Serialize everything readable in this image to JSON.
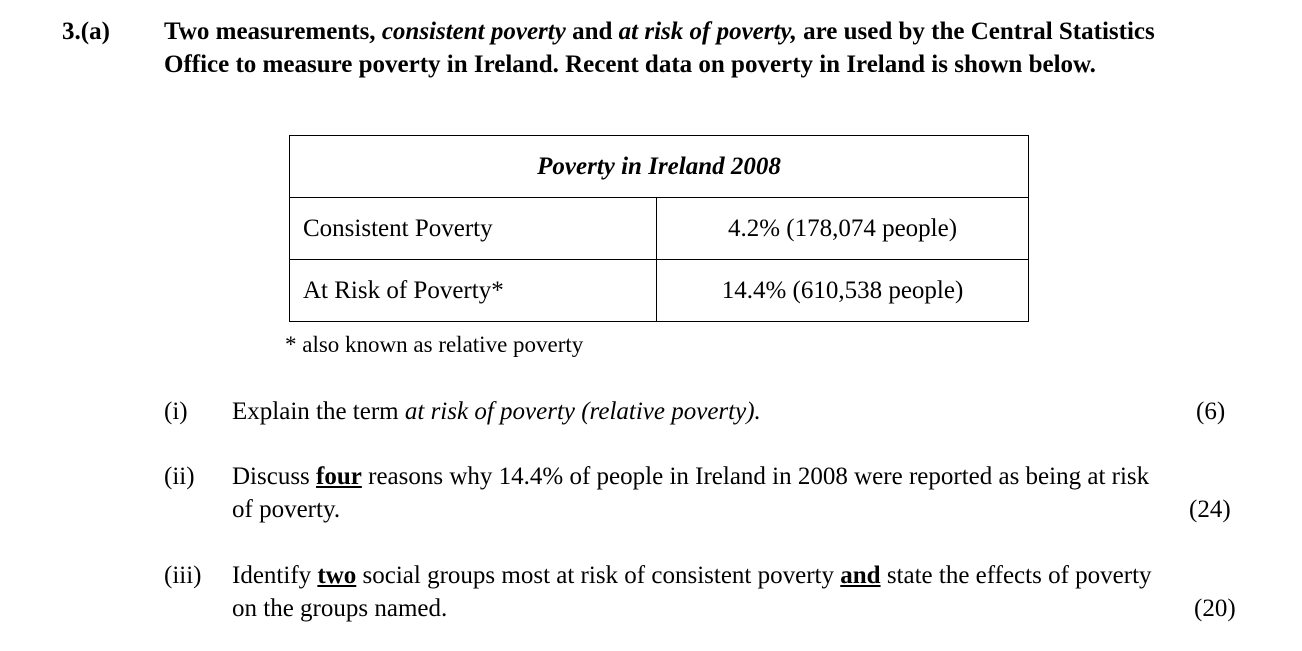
{
  "question": {
    "number": "3.(a)",
    "intro": {
      "part1": "Two measurements, ",
      "italic1": "consistent poverty",
      "part2": " and ",
      "italic2": "at risk of poverty,",
      "part3": " are used by the Central Statistics Office to measure poverty in Ireland.  Recent data on poverty in Ireland is shown below."
    }
  },
  "table": {
    "title": "Poverty in Ireland 2008",
    "rows": [
      {
        "label": "Consistent Poverty",
        "value": "4.2%  (178,074 people)"
      },
      {
        "label": "At Risk of Poverty*",
        "value": "14.4%  (610,538 people)"
      }
    ],
    "footnote": "* also known as relative poverty"
  },
  "parts": [
    {
      "numeral": "(i)",
      "text_before": "Explain the term ",
      "italic": "at risk of poverty (relative poverty).",
      "marks": "(6)"
    },
    {
      "numeral": "(ii)",
      "text_before": "Discuss ",
      "emph": "four",
      "text_after": " reasons why 14.4% of people in Ireland in 2008 were reported as being at risk of poverty.",
      "marks": "(24)"
    },
    {
      "numeral": "(iii)",
      "text_before": "Identify ",
      "emph1": "two",
      "text_middle": " social groups most at risk of consistent poverty ",
      "emph2": "and",
      "text_after": " state the effects of poverty on the groups named.",
      "marks": "(20)"
    }
  ]
}
